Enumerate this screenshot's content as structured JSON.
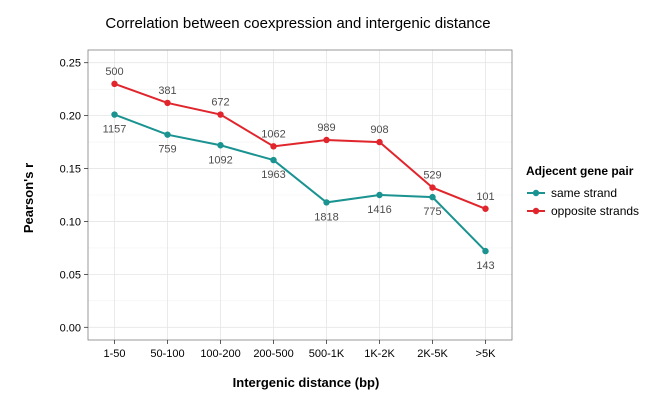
{
  "chart_data": {
    "type": "line",
    "title": "Correlation between coexpression and intergenic distance",
    "xlabel": "Intergenic distance (bp)",
    "ylabel": "Pearson's r",
    "categories": [
      "1-50",
      "50-100",
      "100-200",
      "200-500",
      "500-1K",
      "1K-2K",
      "2K-5K",
      ">5K"
    ],
    "ylim": [
      -0.012,
      0.262
    ],
    "yticks": [
      0.0,
      0.05,
      0.1,
      0.15,
      0.2,
      0.25
    ],
    "ytick_labels": [
      "0.00",
      "0.05",
      "0.10",
      "0.15",
      "0.20",
      "0.25"
    ],
    "grid": true,
    "legend": {
      "title": "Adjecent gene pair",
      "placement": "right"
    },
    "series": [
      {
        "name": "same strand",
        "color": "#1a9391",
        "values": [
          0.201,
          0.182,
          0.172,
          0.158,
          0.118,
          0.125,
          0.123,
          0.072
        ],
        "labels": [
          "1157",
          "759",
          "1092",
          "1963",
          "1818",
          "1416",
          "775",
          "143"
        ],
        "label_position": "below"
      },
      {
        "name": "opposite strands",
        "color": "#e0262c",
        "values": [
          0.23,
          0.212,
          0.201,
          0.171,
          0.177,
          0.175,
          0.132,
          0.112
        ],
        "labels": [
          "500",
          "381",
          "672",
          "1062",
          "989",
          "908",
          "529",
          "101"
        ],
        "label_position": "above"
      }
    ]
  }
}
